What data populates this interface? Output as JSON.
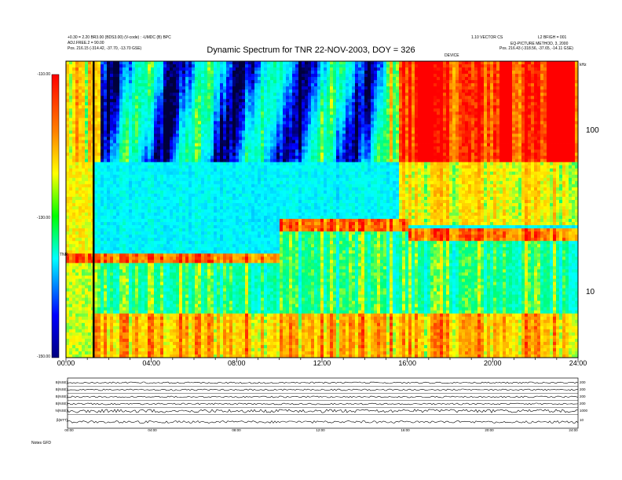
{
  "header": {
    "title": "Dynamic Spectrum for TNR 22-NOV-2003, DOY = 326",
    "top_left_line1": "+0.30 = 2.20 BR3.00 (BDS3.00) (V-code) : -UMDC (B) BPC",
    "top_left_line2": "ADJ.FREE.2 = 90.00",
    "top_left_line3": "Pos.   216.15 (-314.42, -37.70, -13.70 GSE)",
    "top_right_line1": "1.10 VECTOR CS",
    "top_right_line2": "L2 BFIGH = 001",
    "top_right_line3": "EQ-PICTURE METHOD, 3, 2000",
    "top_right_line4": "Pos.   216.43 (-318.56, -37.65, -14.11 GSE)",
    "center_small": "DEVICE"
  },
  "colorbar": {
    "ticks": [
      "-110.00",
      "-130.00",
      "-150.00"
    ],
    "unit_label": "TNR",
    "colors": [
      "#000080",
      "#0000ff",
      "#00ffff",
      "#00ff00",
      "#ffff00",
      "#ff0000"
    ]
  },
  "axes": {
    "x_ticks": [
      "00:00",
      "04:00",
      "08:00",
      "12:00",
      "16:00",
      "20:00",
      "24:00"
    ],
    "y_ticks_right": [
      "100",
      "10"
    ],
    "y_unit_right": "kHz"
  },
  "housekeeping": {
    "left_labels": [
      "B(NSE)",
      "B(NSE)",
      "B(NSE)",
      "B(NSE)",
      "N(NSE)",
      "β(BTT)"
    ],
    "right_labels": [
      "200",
      "200",
      "200",
      "200",
      "1000",
      "10"
    ],
    "x_ticks": [
      "00:00",
      "04:00",
      "08:00",
      "12:00",
      "16:00",
      "20:00",
      "24:00"
    ],
    "footer": "Notes   GFD"
  },
  "chart_data": {
    "type": "heatmap",
    "title": "Dynamic Spectrum for TNR 22-NOV-2003, DOY = 326",
    "xlabel": "",
    "ylabel": "",
    "x_range": [
      "00:00",
      "24:00"
    ],
    "y_range_khz": [
      4,
      250
    ],
    "y_scale": "log",
    "color_range": [
      -150,
      -110
    ],
    "features": [
      {
        "kind": "vertical-black-line",
        "time": "01:15"
      },
      {
        "kind": "band-edge",
        "frequency_khz": 80
      },
      {
        "kind": "cutoff-line",
        "from_time": "01:15",
        "to_time": "09:30",
        "frequency_khz": 17
      },
      {
        "kind": "cutoff-line",
        "from_time": "10:30",
        "to_time": "24:00",
        "frequency_khz": 23
      }
    ]
  }
}
